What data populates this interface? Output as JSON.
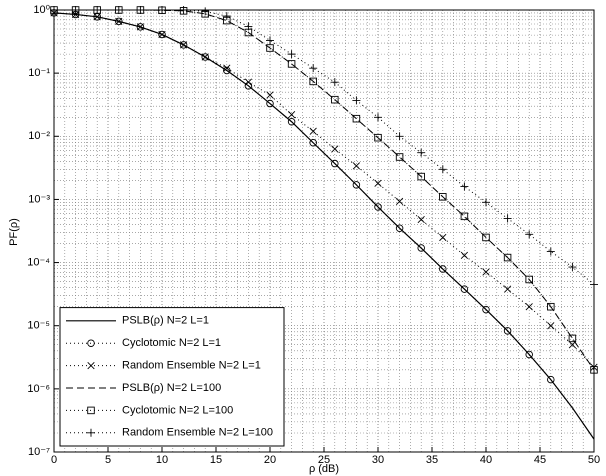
{
  "chart_data": {
    "type": "line",
    "log_y": true,
    "grid": true,
    "minor_grid": true,
    "legend": "lower left",
    "xlabel": "ρ (dB)",
    "ylabel": "PF(ρ)",
    "x": [
      0,
      2,
      4,
      6,
      8,
      10,
      12,
      14,
      16,
      18,
      20,
      22,
      24,
      26,
      28,
      30,
      32,
      34,
      36,
      38,
      40,
      42,
      44,
      46,
      48,
      50
    ],
    "xlim": [
      0,
      50
    ],
    "xticks": [
      0,
      5,
      10,
      15,
      20,
      25,
      30,
      35,
      40,
      45,
      50
    ],
    "ylim": [
      1e-07,
      1
    ],
    "yticks": [
      {
        "value": 1e-07,
        "label": "10⁻⁷"
      },
      {
        "value": 1e-06,
        "label": "10⁻⁶"
      },
      {
        "value": 1e-05,
        "label": "10⁻⁵"
      },
      {
        "value": 0.0001,
        "label": "10⁻⁴"
      },
      {
        "value": 0.001,
        "label": "10⁻³"
      },
      {
        "value": 0.01,
        "label": "10⁻²"
      },
      {
        "value": 0.1,
        "label": "10⁻¹"
      },
      {
        "value": 1,
        "label": "10⁰"
      }
    ],
    "series": [
      {
        "name": "PSLB(ρ) N=2 L=1",
        "color": "#000000",
        "line": "solid",
        "marker": "none",
        "values": [
          0.9,
          0.85,
          0.78,
          0.66,
          0.54,
          0.41,
          0.28,
          0.18,
          0.11,
          0.063,
          0.033,
          0.017,
          0.0079,
          0.0037,
          0.0017,
          0.00076,
          0.00035,
          0.00017,
          7.9e-05,
          3.8e-05,
          1.8e-05,
          8.3e-06,
          3.5e-06,
          1.4e-06,
          5e-07,
          1.6e-07
        ]
      },
      {
        "name": "Cyclotomic N=2 L=1",
        "color": "#000000",
        "line": "dotted",
        "marker": "circle",
        "values": [
          0.9,
          0.85,
          0.78,
          0.66,
          0.54,
          0.41,
          0.28,
          0.18,
          0.11,
          0.063,
          0.033,
          0.017,
          0.0079,
          0.0037,
          0.0017,
          0.00076,
          0.00035,
          0.00017,
          7.9e-05,
          3.8e-05,
          1.8e-05,
          8.3e-06,
          3.5e-06,
          1.4e-06,
          null,
          null
        ]
      },
      {
        "name": "Random Ensemble N=2 L=1",
        "color": "#000000",
        "line": "dotted",
        "marker": "x",
        "values": [
          0.9,
          0.85,
          0.78,
          0.66,
          0.54,
          0.41,
          0.28,
          0.18,
          0.12,
          0.072,
          0.045,
          0.022,
          0.012,
          0.0063,
          0.0034,
          0.0018,
          0.00093,
          0.00048,
          0.00025,
          0.00013,
          7.1e-05,
          3.8e-05,
          2e-05,
          1e-05,
          5e-06,
          2.2e-06
        ]
      },
      {
        "name": "PSLB(ρ) N=2 L=100",
        "color": "#000000",
        "line": "dashed",
        "marker": "none",
        "values": [
          1,
          1,
          1,
          1,
          1,
          0.99,
          0.97,
          0.87,
          0.68,
          0.44,
          0.25,
          0.14,
          0.074,
          0.038,
          0.019,
          0.0095,
          0.0047,
          0.0023,
          0.0011,
          0.00054,
          0.00025,
          0.00012,
          5.4e-05,
          2e-05,
          6.3e-06,
          2e-06
        ]
      },
      {
        "name": "Cyclotomic N=2 L=100",
        "color": "#000000",
        "line": "dotted",
        "marker": "square",
        "values": [
          1,
          1,
          1,
          1,
          1,
          0.99,
          0.97,
          0.87,
          0.68,
          0.44,
          0.25,
          0.14,
          0.074,
          0.038,
          0.019,
          0.0095,
          0.0047,
          0.0023,
          0.0011,
          0.00054,
          0.00025,
          0.00012,
          5.4e-05,
          2e-05,
          6.3e-06,
          2e-06
        ]
      },
      {
        "name": "Random Ensemble N=2 L=100",
        "color": "#000000",
        "line": "dotted",
        "marker": "plus",
        "values": [
          1,
          1,
          1,
          1,
          1,
          1,
          1,
          0.95,
          0.8,
          0.55,
          0.33,
          0.2,
          0.12,
          0.072,
          0.037,
          0.02,
          0.01,
          0.0055,
          0.003,
          0.0016,
          0.0009,
          0.0005,
          0.00028,
          0.00015,
          8.5e-05,
          4.5e-05
        ]
      }
    ]
  }
}
